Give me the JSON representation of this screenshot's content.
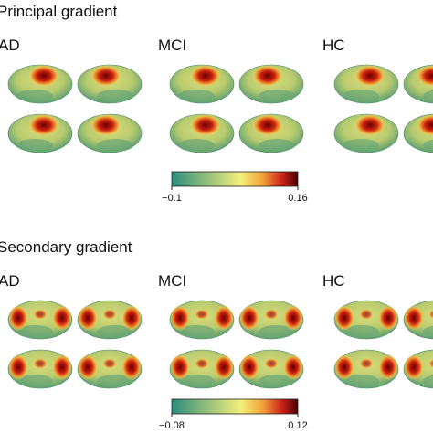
{
  "panels": [
    {
      "title": "Principal gradient",
      "groups": [
        "AD",
        "MCI",
        "HC"
      ],
      "colorbar": {
        "min_label": "−0.1",
        "max_label": "0.16"
      }
    },
    {
      "title": "Secondary gradient",
      "groups": [
        "AD",
        "MCI",
        "HC"
      ],
      "colorbar": {
        "min_label": "−0.08",
        "max_label": "0.12"
      }
    }
  ]
}
